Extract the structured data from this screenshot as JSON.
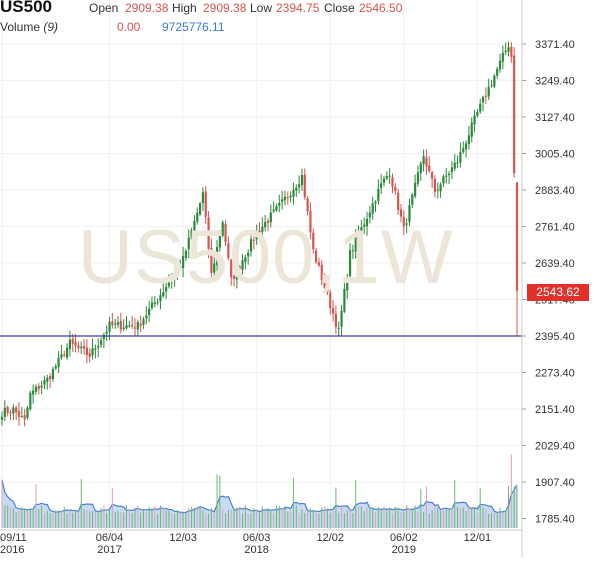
{
  "header": {
    "symbol": "US500",
    "open_label": "Open",
    "open_value": "2909.38",
    "high_label": "High",
    "high_value": "2909.38",
    "low_label": "Low",
    "low_value": "2394.75",
    "close_label": "Close",
    "close_value": "2546.50",
    "volume_label": "Volume",
    "volume_period": "(9)",
    "volume_value_1": "0.00",
    "volume_value_2": "9725776.11"
  },
  "watermark": "US500,1W",
  "current_price": "2543.62",
  "colors": {
    "up": "#2a8a3a",
    "down": "#d9534f",
    "hline": "#3a3fa0",
    "volume_fill": "#c9daf3",
    "volume_line": "#4a7fd0",
    "volume_bar_up": "#6fb86f",
    "volume_bar_down": "#d9a0c8",
    "tag": "#e0312a"
  },
  "chart_data": {
    "type": "candlestick",
    "symbol": "US500",
    "timeframe": "1W",
    "y_ticks": [
      "3371.40",
      "3249.40",
      "3127.40",
      "3005.40",
      "2883.40",
      "2761.40",
      "2639.40",
      "2517.40",
      "2395.40",
      "2273.40",
      "2151.40",
      "2029.40",
      "1907.40",
      "1785.40"
    ],
    "ylim": [
      1760,
      3420
    ],
    "x_ticks": [
      {
        "top": "09/11",
        "bottom": "2016",
        "date": "2016-09-11"
      },
      {
        "top": "06/04",
        "bottom": "2017",
        "date": "2017-06-04"
      },
      {
        "top": "12/03",
        "bottom": "",
        "date": "2017-12-03"
      },
      {
        "top": "06/03",
        "bottom": "2018",
        "date": "2018-06-03"
      },
      {
        "top": "12/02",
        "bottom": "",
        "date": "2018-12-02"
      },
      {
        "top": "06/02",
        "bottom": "2019",
        "date": "2019-06-02"
      },
      {
        "top": "12/01",
        "bottom": "",
        "date": "2019-12-01"
      }
    ],
    "first_week": "2016-09-11",
    "week_count": 183,
    "horizontal_line": 2395.4,
    "close_path": [
      [
        "2016-09-11",
        2140
      ],
      [
        "2016-10-09",
        2150
      ],
      [
        "2016-11-06",
        2110
      ],
      [
        "2016-11-20",
        2200
      ],
      [
        "2017-01-01",
        2250
      ],
      [
        "2017-02-26",
        2370
      ],
      [
        "2017-04-16",
        2330
      ],
      [
        "2017-06-04",
        2430
      ],
      [
        "2017-08-13",
        2430
      ],
      [
        "2017-10-01",
        2520
      ],
      [
        "2017-12-03",
        2650
      ],
      [
        "2018-01-21",
        2870
      ],
      [
        "2018-02-11",
        2600
      ],
      [
        "2018-03-11",
        2780
      ],
      [
        "2018-04-01",
        2580
      ],
      [
        "2018-06-03",
        2740
      ],
      [
        "2018-08-05",
        2840
      ],
      [
        "2018-09-23",
        2930
      ],
      [
        "2018-10-21",
        2680
      ],
      [
        "2018-12-23",
        2410
      ],
      [
        "2019-01-20",
        2670
      ],
      [
        "2019-04-07",
        2900
      ],
      [
        "2019-04-28",
        2945
      ],
      [
        "2019-06-02",
        2750
      ],
      [
        "2019-07-21",
        3000
      ],
      [
        "2019-08-18",
        2880
      ],
      [
        "2019-10-13",
        2980
      ],
      [
        "2019-12-01",
        3140
      ],
      [
        "2020-02-16",
        3370
      ],
      [
        "2020-02-23",
        3330
      ],
      [
        "2020-03-01",
        2950
      ],
      [
        "2020-03-08",
        2880
      ],
      [
        "2020-03-15",
        2546.5
      ]
    ],
    "last_candle": {
      "open": 2909.38,
      "high": 2909.38,
      "low": 2394.75,
      "close": 2546.5
    },
    "volume_indicator": {
      "period": 9,
      "values": [
        0.0,
        9725776.11
      ]
    }
  }
}
